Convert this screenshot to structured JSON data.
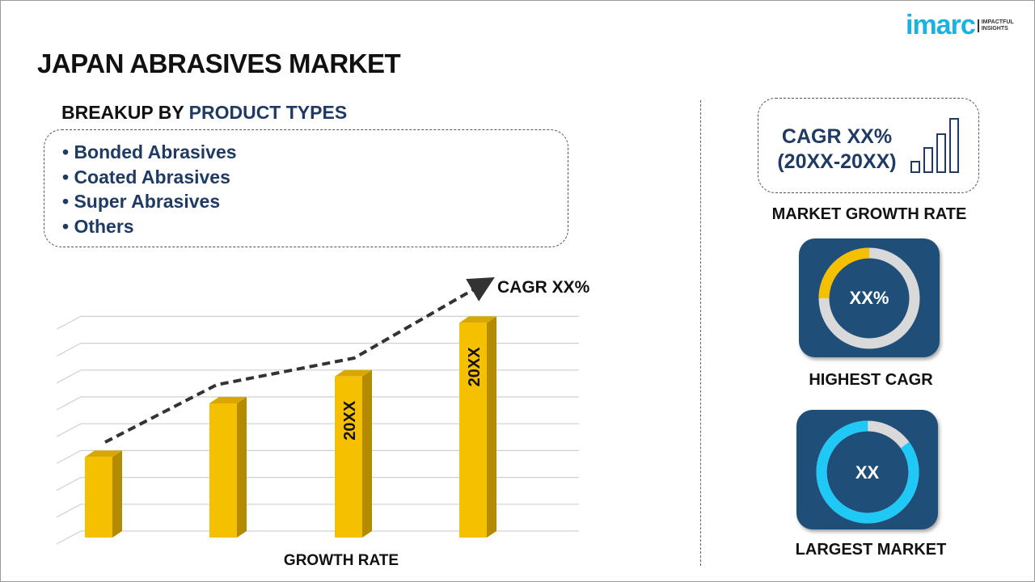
{
  "title": "JAPAN ABRASIVES MARKET",
  "logo": {
    "brand": "imarc",
    "tagline_1": "IMPACTFUL",
    "tagline_2": "INSIGHTS"
  },
  "breakup": {
    "prefix": "BREAKUP BY ",
    "highlight": "PRODUCT TYPES",
    "items": [
      "• Bonded Abrasives",
      "• Coated Abrasives",
      "• Super Abrasives",
      "• Others"
    ]
  },
  "growth": {
    "line1": "CAGR XX%",
    "line2": "(20XX-20XX)",
    "label": "MARKET GROWTH RATE"
  },
  "highest": {
    "value": "XX%",
    "label": "HIGHEST CAGR",
    "fill_fraction": 0.25
  },
  "largest": {
    "value": "XX",
    "label": "LARGEST MARKET",
    "fill_fraction": 0.85
  },
  "colors": {
    "navy": "#1f3b63",
    "tile": "#1f4e79",
    "bar": "#f5c000",
    "cyan": "#1fc8f5",
    "yellow": "#f5c000",
    "gray": "#d9d9d9"
  },
  "chart_data": {
    "type": "bar",
    "categories": [
      "",
      "",
      "",
      ""
    ],
    "values": [
      3,
      5,
      6,
      8
    ],
    "bar_labels": [
      "",
      "",
      "20XX",
      "20XX"
    ],
    "ylim": [
      0,
      8.5
    ],
    "grid": true,
    "trend_annotation": "CAGR XX%",
    "xlabel": "GROWTH RATE",
    "ylabel": ""
  }
}
